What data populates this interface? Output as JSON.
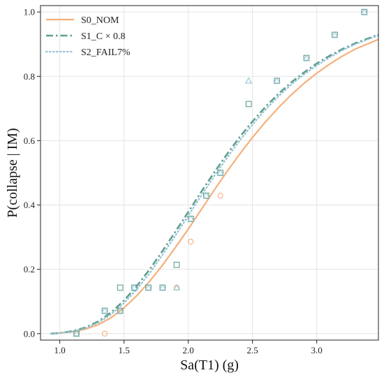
{
  "chart_data": {
    "type": "line",
    "xlabel": "Sa(T1) (g)",
    "ylabel": "P(collapse | IM)",
    "xlim": [
      0.85,
      3.48
    ],
    "ylim": [
      -0.02,
      1.02
    ],
    "xticks": [
      1.0,
      1.5,
      2.0,
      2.5,
      3.0
    ],
    "xtick_labels": [
      "1.0",
      "1.5",
      "2.0",
      "2.5",
      "3.0"
    ],
    "yticks": [
      0.0,
      0.2,
      0.4,
      0.6,
      0.8,
      1.0
    ],
    "ytick_labels": [
      "0.0",
      "0.2",
      "0.4",
      "0.6",
      "0.8",
      "1.0"
    ],
    "grid": true,
    "legend_position": "top-left",
    "series": [
      {
        "name": "S0_NOM",
        "color": "#f5b07a",
        "line_style": "solid",
        "marker": "circle",
        "curve": {
          "x": [
            0.93,
            1.0,
            1.1,
            1.2,
            1.3,
            1.4,
            1.5,
            1.6,
            1.7,
            1.8,
            1.9,
            2.0,
            2.1,
            2.2,
            2.3,
            2.4,
            2.5,
            2.6,
            2.7,
            2.8,
            2.9,
            3.0,
            3.1,
            3.2,
            3.3,
            3.48
          ],
          "y": [
            0.0,
            0.002,
            0.006,
            0.014,
            0.028,
            0.05,
            0.08,
            0.118,
            0.163,
            0.213,
            0.268,
            0.325,
            0.385,
            0.445,
            0.503,
            0.558,
            0.61,
            0.658,
            0.702,
            0.742,
            0.778,
            0.81,
            0.838,
            0.863,
            0.885,
            0.915
          ]
        },
        "points": {
          "x": [
            1.13,
            1.35,
            1.47,
            1.91,
            2.02,
            2.25
          ],
          "y": [
            0.0,
            0.0,
            0.071,
            0.143,
            0.286,
            0.429
          ]
        }
      },
      {
        "name": "S1_C × 0.8",
        "color": "#5f9e8f",
        "line_style": "dashdot",
        "marker": "square",
        "curve": {
          "x": [
            0.93,
            1.0,
            1.1,
            1.2,
            1.3,
            1.4,
            1.5,
            1.6,
            1.7,
            1.8,
            1.9,
            2.0,
            2.1,
            2.2,
            2.3,
            2.4,
            2.5,
            2.6,
            2.7,
            2.8,
            2.9,
            3.0,
            3.1,
            3.2,
            3.3,
            3.48
          ],
          "y": [
            0.0,
            0.002,
            0.008,
            0.019,
            0.038,
            0.066,
            0.103,
            0.148,
            0.2,
            0.257,
            0.317,
            0.378,
            0.44,
            0.5,
            0.557,
            0.611,
            0.66,
            0.705,
            0.745,
            0.781,
            0.812,
            0.84,
            0.864,
            0.885,
            0.903,
            0.93
          ]
        },
        "points": {
          "x": [
            1.13,
            1.35,
            1.47,
            1.47,
            1.58,
            1.69,
            1.8,
            1.91,
            2.02,
            2.14,
            2.25,
            2.47,
            2.69,
            2.92,
            3.14,
            3.37
          ],
          "y": [
            0.0,
            0.071,
            0.071,
            0.143,
            0.143,
            0.143,
            0.143,
            0.214,
            0.357,
            0.429,
            0.5,
            0.714,
            0.786,
            0.857,
            0.929,
            1.0
          ]
        }
      },
      {
        "name": "S2_FAIL7%",
        "color": "#94c4d4",
        "line_style": "dotted",
        "marker": "triangle",
        "curve": {
          "x": [
            0.93,
            1.0,
            1.1,
            1.2,
            1.3,
            1.4,
            1.5,
            1.6,
            1.7,
            1.8,
            1.9,
            2.0,
            2.1,
            2.2,
            2.3,
            2.4,
            2.5,
            2.6,
            2.7,
            2.8,
            2.9,
            3.0,
            3.1,
            3.2,
            3.3,
            3.48
          ],
          "y": [
            0.0,
            0.002,
            0.007,
            0.017,
            0.034,
            0.06,
            0.095,
            0.138,
            0.188,
            0.245,
            0.305,
            0.366,
            0.428,
            0.488,
            0.546,
            0.6,
            0.65,
            0.696,
            0.737,
            0.774,
            0.806,
            0.834,
            0.859,
            0.881,
            0.9,
            0.927
          ]
        },
        "points": {
          "x": [
            1.13,
            1.35,
            1.47,
            1.58,
            1.69,
            1.8,
            1.91,
            2.02,
            2.14,
            2.25,
            2.47,
            2.69,
            2.92,
            3.14,
            3.37
          ],
          "y": [
            0.0,
            0.071,
            0.071,
            0.143,
            0.143,
            0.143,
            0.143,
            0.357,
            0.429,
            0.5,
            0.786,
            0.786,
            0.857,
            0.929,
            1.0
          ]
        }
      }
    ]
  }
}
